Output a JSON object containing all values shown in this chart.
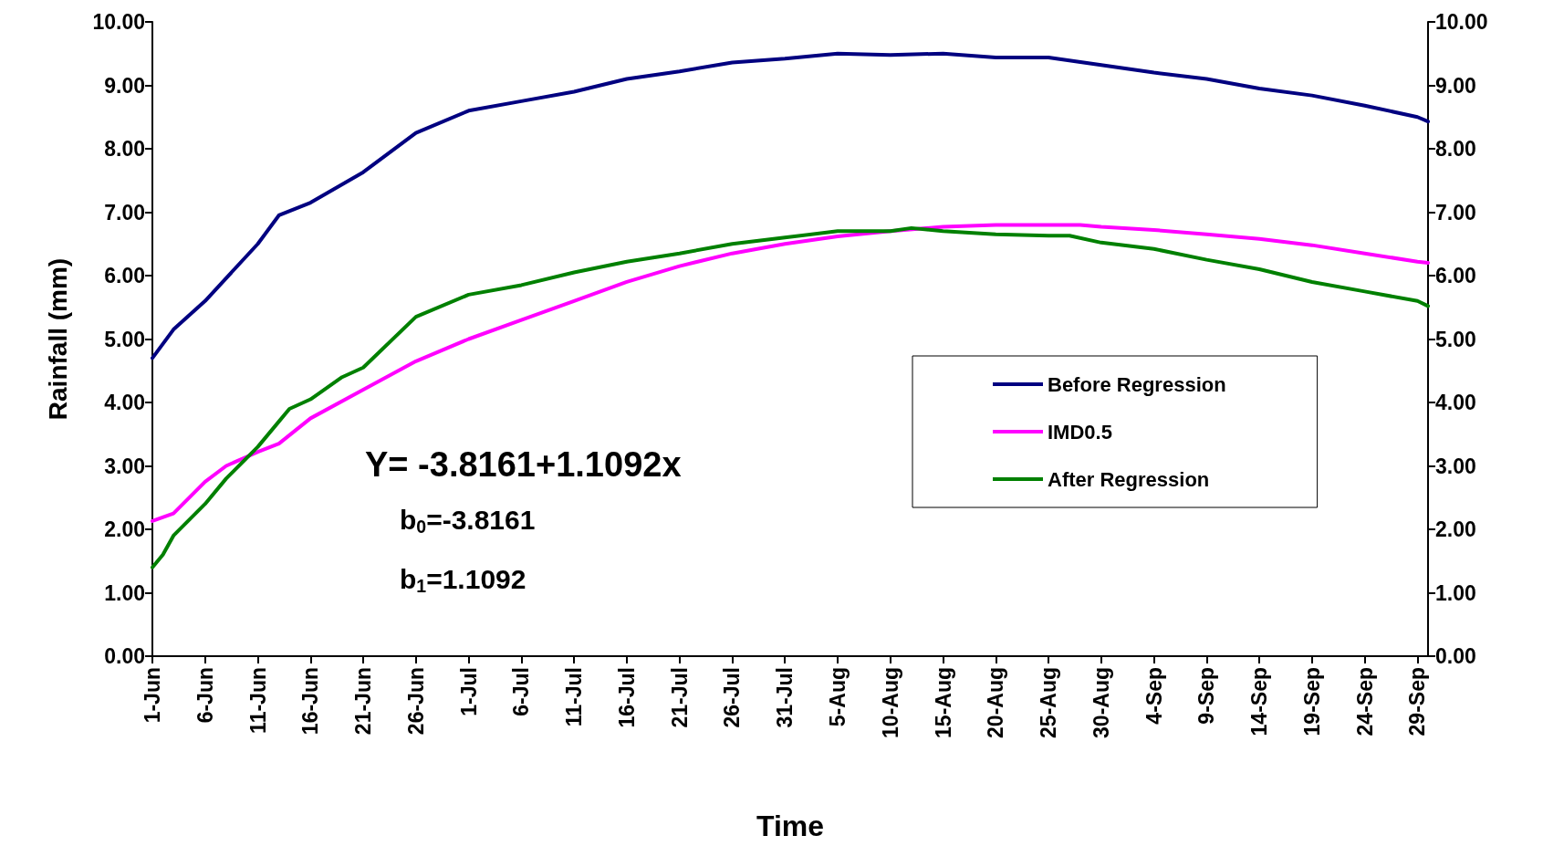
{
  "chart_data": {
    "type": "line",
    "xlabel": "Time",
    "ylabel": "Rainfall (mm)",
    "xlim": [
      "--06-01",
      "--09-30"
    ],
    "xticks": [
      {
        "value": "--06-01",
        "label": "1-Jun"
      },
      {
        "value": "--06-06",
        "label": "6-Jun"
      },
      {
        "value": "--06-11",
        "label": "11-Jun"
      },
      {
        "value": "--06-16",
        "label": "16-Jun"
      },
      {
        "value": "--06-21",
        "label": "21-Jun"
      },
      {
        "value": "--06-26",
        "label": "26-Jun"
      },
      {
        "value": "--07-01",
        "label": "1-Jul"
      },
      {
        "value": "--07-06",
        "label": "6-Jul"
      },
      {
        "value": "--07-11",
        "label": "11-Jul"
      },
      {
        "value": "--07-16",
        "label": "16-Jul"
      },
      {
        "value": "--07-21",
        "label": "21-Jul"
      },
      {
        "value": "--07-26",
        "label": "26-Jul"
      },
      {
        "value": "--07-31",
        "label": "31-Jul"
      },
      {
        "value": "--08-05",
        "label": "5-Aug"
      },
      {
        "value": "--08-10",
        "label": "10-Aug"
      },
      {
        "value": "--08-15",
        "label": "15-Aug"
      },
      {
        "value": "--08-20",
        "label": "20-Aug"
      },
      {
        "value": "--08-25",
        "label": "25-Aug"
      },
      {
        "value": "--08-30",
        "label": "30-Aug"
      },
      {
        "value": "--09-04",
        "label": "4-Sep"
      },
      {
        "value": "--09-09",
        "label": "9-Sep"
      },
      {
        "value": "--09-14",
        "label": "14-Sep"
      },
      {
        "value": "--09-19",
        "label": "19-Sep"
      },
      {
        "value": "--09-24",
        "label": "24-Sep"
      },
      {
        "value": "--09-29",
        "label": "29-Sep"
      }
    ],
    "ylim": [
      0,
      10
    ],
    "yticks": [
      {
        "value": 0,
        "label": "0.00"
      },
      {
        "value": 1,
        "label": "1.00"
      },
      {
        "value": 2,
        "label": "2.00"
      },
      {
        "value": 3,
        "label": "3.00"
      },
      {
        "value": 4,
        "label": "4.00"
      },
      {
        "value": 5,
        "label": "5.00"
      },
      {
        "value": 6,
        "label": "6.00"
      },
      {
        "value": 7,
        "label": "7.00"
      },
      {
        "value": 8,
        "label": "8.00"
      },
      {
        "value": 9,
        "label": "9.00"
      },
      {
        "value": 10,
        "label": "10.00"
      }
    ],
    "y2lim": [
      0,
      10
    ],
    "y2ticks": [
      {
        "value": 0,
        "label": "0.00"
      },
      {
        "value": 1,
        "label": "1.00"
      },
      {
        "value": 2,
        "label": "2.00"
      },
      {
        "value": 3,
        "label": "3.00"
      },
      {
        "value": 4,
        "label": "4.00"
      },
      {
        "value": 5,
        "label": "5.00"
      },
      {
        "value": 6,
        "label": "6.00"
      },
      {
        "value": 7,
        "label": "7.00"
      },
      {
        "value": 8,
        "label": "8.00"
      },
      {
        "value": 9,
        "label": "9.00"
      },
      {
        "value": 10,
        "label": "10.00"
      }
    ],
    "grid": false,
    "legend": "center right",
    "marker": "none",
    "line_style": "solid",
    "annotations": [
      "Y= -3.8161+1.1092x",
      "b$_{0}$=-3.8161",
      "b$_{1}$=1.1092"
    ],
    "series": [
      {
        "name": "Before Regression",
        "color": "#000080",
        "x": [
          "--06-01",
          "--06-03",
          "--06-06",
          "--06-11",
          "--06-13",
          "--06-16",
          "--06-21",
          "--06-26",
          "--07-01",
          "--07-06",
          "--07-11",
          "--07-16",
          "--07-21",
          "--07-26",
          "--07-31",
          "--08-05",
          "--08-10",
          "--08-15",
          "--08-20",
          "--08-25",
          "--08-30",
          "--09-04",
          "--09-09",
          "--09-14",
          "--09-19",
          "--09-24",
          "--09-29",
          "--09-30"
        ],
        "values": [
          4.7,
          5.15,
          5.6,
          6.5,
          6.95,
          7.15,
          7.63,
          8.25,
          8.6,
          8.75,
          8.9,
          9.1,
          9.22,
          9.36,
          9.42,
          9.5,
          9.48,
          9.5,
          9.44,
          9.44,
          9.32,
          9.2,
          9.1,
          8.95,
          8.84,
          8.68,
          8.5,
          8.43
        ]
      },
      {
        "name": "IMD0.5",
        "color": "#ff00ff",
        "x": [
          "--06-01",
          "--06-03",
          "--06-06",
          "--06-08",
          "--06-11",
          "--06-13",
          "--06-16",
          "--06-21",
          "--06-26",
          "--07-01",
          "--07-06",
          "--07-11",
          "--07-16",
          "--07-21",
          "--07-26",
          "--07-31",
          "--08-05",
          "--08-10",
          "--08-15",
          "--08-20",
          "--08-25",
          "--08-28",
          "--08-30",
          "--09-04",
          "--09-09",
          "--09-14",
          "--09-19",
          "--09-24",
          "--09-29",
          "--09-30"
        ],
        "values": [
          2.13,
          2.25,
          2.75,
          3.0,
          3.22,
          3.35,
          3.75,
          4.2,
          4.65,
          5.0,
          5.3,
          5.6,
          5.9,
          6.15,
          6.35,
          6.5,
          6.62,
          6.7,
          6.77,
          6.8,
          6.8,
          6.8,
          6.77,
          6.72,
          6.65,
          6.58,
          6.48,
          6.35,
          6.22,
          6.2
        ]
      },
      {
        "name": "After Regression",
        "color": "#008000",
        "x": [
          "--06-01",
          "--06-02",
          "--06-03",
          "--06-06",
          "--06-08",
          "--06-11",
          "--06-13",
          "--06-14",
          "--06-16",
          "--06-19",
          "--06-21",
          "--06-26",
          "--07-01",
          "--07-06",
          "--07-11",
          "--07-16",
          "--07-21",
          "--07-26",
          "--07-31",
          "--08-05",
          "--08-10",
          "--08-12",
          "--08-15",
          "--08-20",
          "--08-25",
          "--08-27",
          "--08-30",
          "--09-04",
          "--09-09",
          "--09-14",
          "--09-19",
          "--09-24",
          "--09-29",
          "--09-30"
        ],
        "values": [
          1.4,
          1.6,
          1.9,
          2.4,
          2.8,
          3.3,
          3.7,
          3.9,
          4.05,
          4.4,
          4.55,
          5.35,
          5.7,
          5.85,
          6.05,
          6.22,
          6.35,
          6.5,
          6.6,
          6.7,
          6.7,
          6.75,
          6.7,
          6.65,
          6.63,
          6.63,
          6.52,
          6.42,
          6.25,
          6.1,
          5.9,
          5.75,
          5.6,
          5.52
        ]
      }
    ]
  }
}
